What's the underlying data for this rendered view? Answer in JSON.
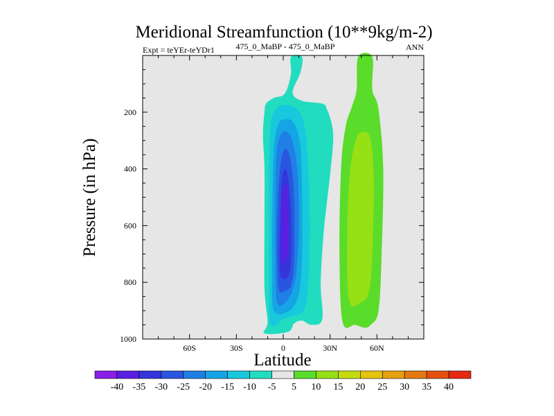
{
  "chart_data": {
    "type": "heatmap",
    "title": "Meridional Streamfunction (10**9kg/m-2)",
    "subtitle_left": "Expt = teYEr-teYDr1",
    "subtitle_center": "475_0_MaBP - 475_0_MaBP",
    "subtitle_right": "ANN",
    "xlabel": "Latitude",
    "ylabel": "Pressure (in hPa)",
    "xlim": [
      -90,
      90
    ],
    "ylim": [
      1000,
      0
    ],
    "x_ticks": [
      {
        "value": -60,
        "label": "60S"
      },
      {
        "value": -30,
        "label": "30S"
      },
      {
        "value": 0,
        "label": "0"
      },
      {
        "value": 30,
        "label": "30N"
      },
      {
        "value": 60,
        "label": "60N"
      }
    ],
    "y_ticks": [
      {
        "value": 200,
        "label": "200"
      },
      {
        "value": 400,
        "label": "400"
      },
      {
        "value": 600,
        "label": "600"
      },
      {
        "value": 800,
        "label": "800"
      },
      {
        "value": 1000,
        "label": "1000"
      }
    ],
    "background_color": "#e6e6e6",
    "colorbar": {
      "labels": [
        "-40",
        "-35",
        "-30",
        "-25",
        "-20",
        "-15",
        "-10",
        "-5",
        "5",
        "10",
        "15",
        "20",
        "25",
        "30",
        "35",
        "40"
      ],
      "colors": [
        "#8a1fe8",
        "#5a1fe0",
        "#3535dc",
        "#2a55e0",
        "#1f7fe4",
        "#15a4e4",
        "#18c8dc",
        "#22dcc0",
        "#e6e6e6",
        "#5adc2a",
        "#96e016",
        "#c6dc10",
        "#e4c410",
        "#e4a010",
        "#e47a10",
        "#e45010",
        "#e42a10"
      ]
    },
    "fields": [
      {
        "name": "negative-cell",
        "contours": [
          {
            "level": -5,
            "color": "#22dcc0",
            "pts": [
              [
                -12,
                980
              ],
              [
                -10,
                940
              ],
              [
                -12,
                820
              ],
              [
                -12,
                600
              ],
              [
                -12,
                400
              ],
              [
                -13,
                280
              ],
              [
                -12,
                200
              ],
              [
                -11,
                170
              ],
              [
                -6,
                150
              ],
              [
                0,
                140
              ],
              [
                3,
                110
              ],
              [
                5,
                60
              ],
              [
                5,
                5
              ],
              [
                12,
                5
              ],
              [
                11,
                60
              ],
              [
                6,
                130
              ],
              [
                12,
                160
              ],
              [
                25,
                170
              ],
              [
                28,
                190
              ],
              [
                31,
                240
              ],
              [
                32,
                300
              ],
              [
                30,
                420
              ],
              [
                26,
                620
              ],
              [
                24,
                800
              ],
              [
                25,
                930
              ],
              [
                18,
                950
              ],
              [
                12,
                935
              ],
              [
                7,
                945
              ],
              [
                3,
                975
              ]
            ]
          },
          {
            "level": -10,
            "color": "#18c8dc",
            "pts": [
              [
                -8,
                950
              ],
              [
                -9,
                820
              ],
              [
                -9,
                600
              ],
              [
                -9,
                400
              ],
              [
                -8,
                240
              ],
              [
                -4,
                185
              ],
              [
                3,
                175
              ],
              [
                10,
                195
              ],
              [
                14,
                260
              ],
              [
                16,
                400
              ],
              [
                17,
                600
              ],
              [
                16,
                800
              ],
              [
                13,
                900
              ],
              [
                5,
                920
              ],
              [
                0,
                930
              ]
            ]
          },
          {
            "level": -15,
            "color": "#15a4e4",
            "pts": [
              [
                -6,
                900
              ],
              [
                -7,
                760
              ],
              [
                -7,
                550
              ],
              [
                -6,
                330
              ],
              [
                -3,
                240
              ],
              [
                2,
                225
              ],
              [
                7,
                240
              ],
              [
                11,
                320
              ],
              [
                12,
                500
              ],
              [
                12,
                700
              ],
              [
                10,
                840
              ],
              [
                4,
                900
              ]
            ]
          },
          {
            "level": -20,
            "color": "#1f7fe4",
            "pts": [
              [
                -4,
                870
              ],
              [
                -5,
                700
              ],
              [
                -5,
                500
              ],
              [
                -4,
                330
              ],
              [
                0,
                270
              ],
              [
                5,
                290
              ],
              [
                9,
                400
              ],
              [
                10,
                600
              ],
              [
                8,
                780
              ],
              [
                3,
                860
              ]
            ]
          },
          {
            "level": -25,
            "color": "#2a55e0",
            "pts": [
              [
                -3,
                820
              ],
              [
                -4,
                650
              ],
              [
                -3,
                470
              ],
              [
                -1,
                360
              ],
              [
                2,
                330
              ],
              [
                5,
                380
              ],
              [
                7,
                520
              ],
              [
                7,
                720
              ],
              [
                5,
                810
              ],
              [
                1,
                830
              ]
            ]
          },
          {
            "level": -30,
            "color": "#3535dc",
            "pts": [
              [
                -2,
                770
              ],
              [
                -2,
                600
              ],
              [
                -1,
                450
              ],
              [
                1,
                400
              ],
              [
                3,
                430
              ],
              [
                5,
                560
              ],
              [
                5,
                720
              ],
              [
                3,
                780
              ]
            ]
          },
          {
            "level": -35,
            "color": "#5a1fe0",
            "pts": [
              [
                -1,
                720
              ],
              [
                -1,
                560
              ],
              [
                0,
                470
              ],
              [
                2,
                460
              ],
              [
                3,
                560
              ],
              [
                3,
                690
              ],
              [
                1,
                730
              ]
            ]
          }
        ]
      },
      {
        "name": "positive-cell",
        "contours": [
          {
            "level": 5,
            "color": "#5adc2a",
            "pts": [
              [
                38,
                940
              ],
              [
                36,
                700
              ],
              [
                37,
                400
              ],
              [
                40,
                250
              ],
              [
                44,
                180
              ],
              [
                47,
                120
              ],
              [
                48,
                5
              ],
              [
                57,
                5
              ],
              [
                57,
                120
              ],
              [
                61,
                190
              ],
              [
                64,
                400
              ],
              [
                63,
                700
              ],
              [
                61,
                900
              ],
              [
                56,
                950
              ],
              [
                52,
                960
              ],
              [
                46,
                950
              ]
            ]
          },
          {
            "level": 10,
            "color": "#96e016",
            "pts": [
              [
                42,
                860
              ],
              [
                41,
                600
              ],
              [
                43,
                400
              ],
              [
                47,
                290
              ],
              [
                52,
                270
              ],
              [
                56,
                300
              ],
              [
                58,
                450
              ],
              [
                57,
                700
              ],
              [
                55,
                830
              ],
              [
                50,
                870
              ]
            ]
          }
        ]
      }
    ]
  }
}
